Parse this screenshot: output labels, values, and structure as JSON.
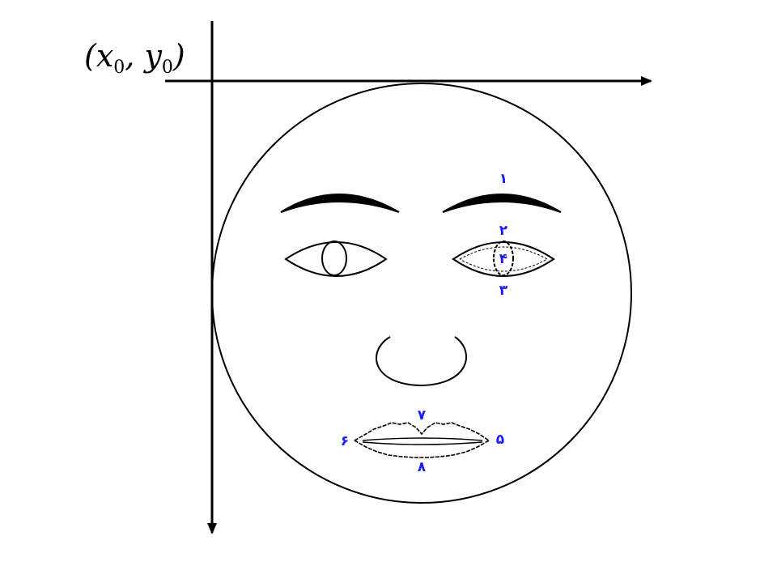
{
  "origin": {
    "x_symbol": "x",
    "y_symbol": "y",
    "subscript": "0"
  },
  "feature_points": {
    "p1": "۱",
    "p2": "۲",
    "p3": "۳",
    "p4": "۴",
    "p5": "۵",
    "p6": "۶",
    "p7": "۷",
    "p8": "۸"
  },
  "colors": {
    "line": "#000000",
    "point_label": "#1a1aff",
    "background": "#ffffff"
  }
}
